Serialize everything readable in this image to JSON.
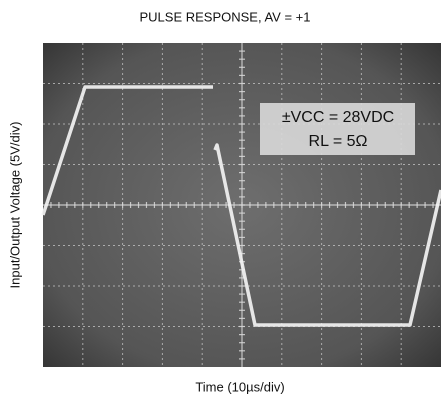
{
  "chart_data": {
    "type": "oscilloscope",
    "title": "PULSE RESPONSE, AV = +1",
    "y_label": "Input/Output Voltage (5V/div)",
    "x_label": "Time (10µs/div)",
    "annotations": [
      "±VCC = 28VDC",
      "RL = 5Ω"
    ]
  }
}
